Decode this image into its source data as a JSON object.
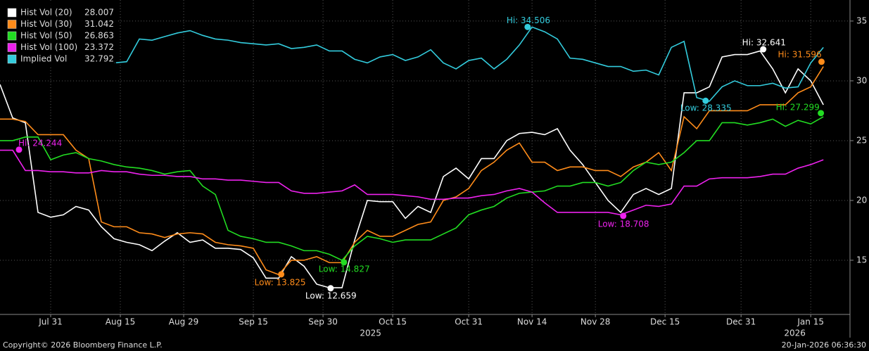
{
  "chart_data": {
    "type": "line",
    "ylim": [
      10.47,
      36.76
    ],
    "yticks": [
      15,
      20,
      25,
      30,
      35
    ],
    "xlim": [
      0,
      134.2
    ],
    "xticks": [
      {
        "value": 8,
        "label": "Jul 31"
      },
      {
        "value": 19,
        "label": "Aug 15"
      },
      {
        "value": 29,
        "label": "Aug 29"
      },
      {
        "value": 40,
        "label": "Sep 15"
      },
      {
        "value": 51,
        "label": "Sep 30"
      },
      {
        "value": 62,
        "label": "Oct 15"
      },
      {
        "value": 74,
        "label": "Oct 31"
      },
      {
        "value": 84,
        "label": "Nov 14"
      },
      {
        "value": 94,
        "label": "Nov 28"
      },
      {
        "value": 105,
        "label": "Dec 15"
      },
      {
        "value": 117,
        "label": "Dec 31"
      },
      {
        "value": 128,
        "label": "Jan 15"
      }
    ],
    "year_labels": [
      {
        "value": 58.5,
        "label": "2025"
      },
      {
        "value": 125.5,
        "label": "2026"
      }
    ],
    "grid": true,
    "legend": "upper left",
    "x": [
      0,
      2,
      4,
      6,
      8,
      10,
      12,
      14,
      16,
      18,
      20,
      22,
      24,
      26,
      28,
      30,
      32,
      34,
      36,
      38,
      40,
      42,
      44,
      46,
      48,
      50,
      52,
      54,
      56,
      58,
      60,
      62,
      64,
      66,
      68,
      70,
      72,
      74,
      76,
      78,
      80,
      82,
      84,
      86,
      88,
      90,
      92,
      94,
      96,
      98,
      100,
      102,
      104,
      106,
      108,
      110,
      112,
      114,
      116,
      118,
      120,
      122,
      124,
      126,
      128,
      130
    ],
    "series": [
      {
        "name": "Hist Vol (20)",
        "last": 28.007,
        "color": "#ffffff",
        "values": [
          29.7,
          26.9,
          26.5,
          19,
          18.6,
          18.8,
          19.5,
          19.2,
          17.8,
          16.8,
          16.5,
          16.3,
          15.8,
          16.6,
          17.3,
          16.5,
          16.7,
          16,
          16,
          15.9,
          15.2,
          13.5,
          13.5,
          15.3,
          14.5,
          13,
          12.7,
          12.7,
          16.7,
          20,
          19.9,
          19.9,
          18.5,
          19.5,
          19,
          22,
          22.7,
          21.8,
          23.5,
          23.5,
          25,
          25.6,
          25.7,
          25.5,
          26,
          24.2,
          23,
          21.5,
          20,
          19,
          20.5,
          21,
          20.5,
          21,
          29,
          29,
          29.5,
          32,
          32.2,
          32.2,
          32.5,
          31,
          29,
          31,
          30,
          28
        ]
      },
      {
        "name": "Hist Vol (30)",
        "last": 31.042,
        "color": "#ff8c1a",
        "values": [
          26.8,
          26.8,
          26.6,
          25.5,
          25.5,
          25.5,
          24.2,
          23.5,
          18.2,
          17.8,
          17.8,
          17.3,
          17.2,
          16.9,
          17.2,
          17.3,
          17.2,
          16.5,
          16.3,
          16.2,
          16,
          14.2,
          13.8,
          15,
          15,
          15.3,
          14.8,
          14.8,
          16.5,
          17.5,
          17,
          17,
          17.5,
          18,
          18.2,
          20,
          20.3,
          21,
          22.5,
          23.2,
          24.2,
          24.8,
          23.2,
          23.2,
          22.5,
          22.8,
          22.8,
          22.5,
          22.5,
          22,
          22.8,
          23.2,
          24,
          22.5,
          27,
          26,
          27.5,
          27.5,
          27.5,
          27.5,
          28,
          28,
          28,
          29,
          29.5,
          31.2
        ]
      },
      {
        "name": "Hist Vol (50)",
        "last": 26.863,
        "color": "#22dd22",
        "values": [
          25,
          25,
          25.3,
          25.3,
          23.4,
          23.8,
          24,
          23.5,
          23.3,
          23,
          22.8,
          22.7,
          22.5,
          22.2,
          22.4,
          22.5,
          21.2,
          20.5,
          17.5,
          17,
          16.8,
          16.5,
          16.5,
          16.2,
          15.8,
          15.8,
          15.5,
          15,
          16.2,
          17,
          16.8,
          16.5,
          16.7,
          16.7,
          16.7,
          17.2,
          17.7,
          18.8,
          19.2,
          19.5,
          20.2,
          20.6,
          20.7,
          20.8,
          21.2,
          21.2,
          21.5,
          21.5,
          21.2,
          21.5,
          22.5,
          23.2,
          23,
          23.2,
          24,
          25,
          25,
          26.5,
          26.5,
          26.3,
          26.5,
          26.8,
          26.2,
          26.7,
          26.4,
          27
        ]
      },
      {
        "name": "Hist Vol (100)",
        "last": 23.372,
        "color": "#ee22ee",
        "values": [
          24.2,
          24.2,
          22.5,
          22.5,
          22.4,
          22.4,
          22.3,
          22.3,
          22.5,
          22.4,
          22.4,
          22.2,
          22.1,
          22.1,
          22,
          22,
          21.8,
          21.8,
          21.7,
          21.7,
          21.6,
          21.5,
          21.5,
          20.8,
          20.6,
          20.6,
          20.7,
          20.8,
          21.3,
          20.5,
          20.5,
          20.5,
          20.4,
          20.3,
          20.1,
          20.1,
          20.2,
          20.2,
          20.4,
          20.5,
          20.8,
          21,
          20.7,
          19.8,
          19,
          19,
          19,
          19,
          19,
          18.8,
          19.2,
          19.6,
          19.5,
          19.7,
          21.2,
          21.2,
          21.8,
          21.9,
          21.9,
          21.9,
          22,
          22.2,
          22.2,
          22.7,
          23,
          23.4
        ]
      },
      {
        "name": "Implied Vol",
        "last": 32.792,
        "color": "#33ccdd",
        "values": [
          null,
          null,
          null,
          null,
          null,
          null,
          null,
          null,
          null,
          31.5,
          31.6,
          33.5,
          33.4,
          33.7,
          34,
          34.2,
          33.8,
          33.5,
          33.4,
          33.2,
          33.1,
          33,
          33.1,
          32.7,
          32.8,
          33,
          32.5,
          32.5,
          31.8,
          31.5,
          32,
          32.2,
          31.7,
          32,
          32.6,
          31.5,
          31,
          31.7,
          31.9,
          31,
          31.8,
          33,
          34.5,
          34.1,
          33.5,
          31.9,
          31.8,
          31.5,
          31.2,
          31.2,
          30.8,
          30.9,
          30.5,
          32.8,
          33.3,
          28.6,
          28.3,
          29.5,
          30,
          29.6,
          29.6,
          29.8,
          29.4,
          29.5,
          31.5,
          32.8
        ]
      }
    ],
    "annotations": [
      {
        "label": "Hi: 34.506",
        "series": 4,
        "x": 83.3,
        "y": 34.506
      },
      {
        "label": "Low: 28.335",
        "series": 4,
        "x": 111.4,
        "y": 28.335
      },
      {
        "label": "Hi: 32.641",
        "series": 0,
        "x": 120.5,
        "y": 32.641
      },
      {
        "label": "Hi: 31.596",
        "series": 1,
        "x": 129.7,
        "y": 31.596
      },
      {
        "label": "Hi: 27.299",
        "series": 2,
        "x": 129.6,
        "y": 27.299
      },
      {
        "label": "Low: 14.827",
        "series": 2,
        "x": 54.3,
        "y": 14.827
      },
      {
        "label": "Low: 12.659",
        "series": 0,
        "x": 52.2,
        "y": 12.659
      },
      {
        "label": "Low: 13.825",
        "series": 1,
        "x": 44.4,
        "y": 13.825
      },
      {
        "label": "Low: 18.708",
        "series": 3,
        "x": 98.4,
        "y": 18.708
      },
      {
        "label": "Hi: 24.244",
        "series": 3,
        "x": 3,
        "y": 24.244
      }
    ],
    "footer_left": "Copyright© 2026 Bloomberg Finance L.P.",
    "footer_right": "20-Jan-2026 06:36:30"
  }
}
